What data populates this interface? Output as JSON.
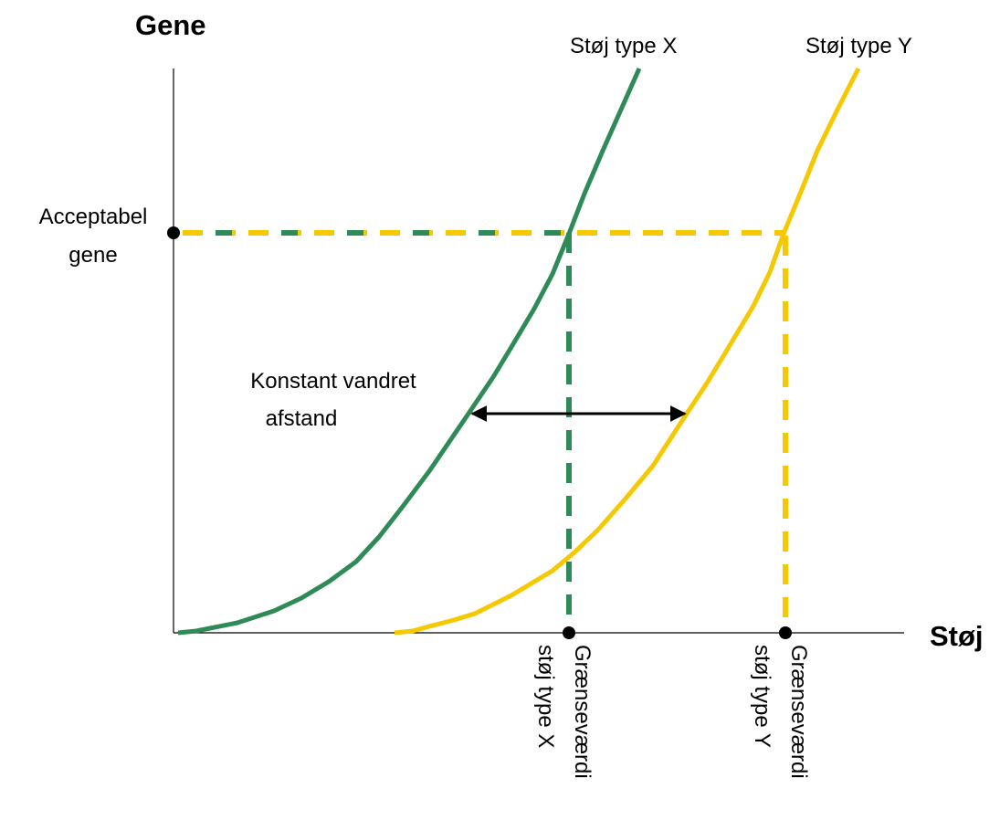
{
  "y_axis_label": "Gene",
  "x_axis_label": "Støj",
  "curves": [
    {
      "label": "Støj type X"
    },
    {
      "label": "Støj type Y"
    }
  ],
  "acceptable_label": [
    "Acceptabel",
    "gene"
  ],
  "distance_label": [
    "Konstant vandret",
    "afstand"
  ],
  "limits": [
    {
      "label": [
        "Grænseværdi",
        "støj type X"
      ]
    },
    {
      "label": [
        "Grænseværdi",
        "støj type Y"
      ]
    }
  ]
}
